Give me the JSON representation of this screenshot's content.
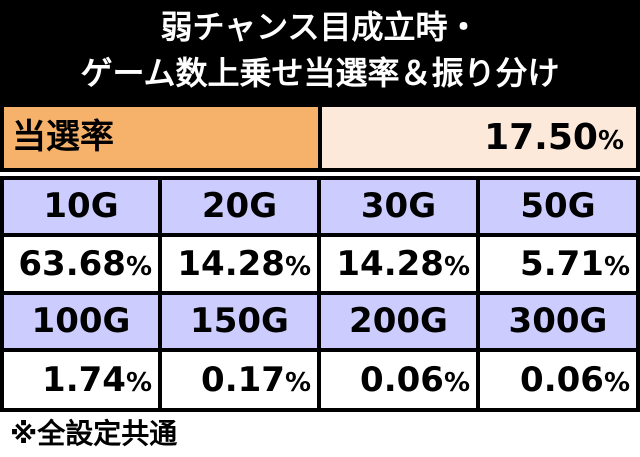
{
  "title": {
    "line1": "弱チャンス目成立時・",
    "line2": "ゲーム数上乗せ当選率＆振り分け"
  },
  "rate": {
    "label": "当選率",
    "value": "17.50",
    "unit": "%"
  },
  "table": {
    "rows": [
      {
        "headers": [
          "10G",
          "20G",
          "30G",
          "50G"
        ],
        "values": [
          "63.68",
          "14.28",
          "14.28",
          "5.71"
        ]
      },
      {
        "headers": [
          "100G",
          "150G",
          "200G",
          "300G"
        ],
        "values": [
          "1.74",
          "0.17",
          "0.06",
          "0.06"
        ]
      }
    ],
    "unit": "%"
  },
  "note": "※全設定共通",
  "colors": {
    "header_bg": "#ccccff",
    "rate_label_bg": "#f6b26b",
    "rate_value_bg": "#fde9d9",
    "border": "#000000"
  }
}
